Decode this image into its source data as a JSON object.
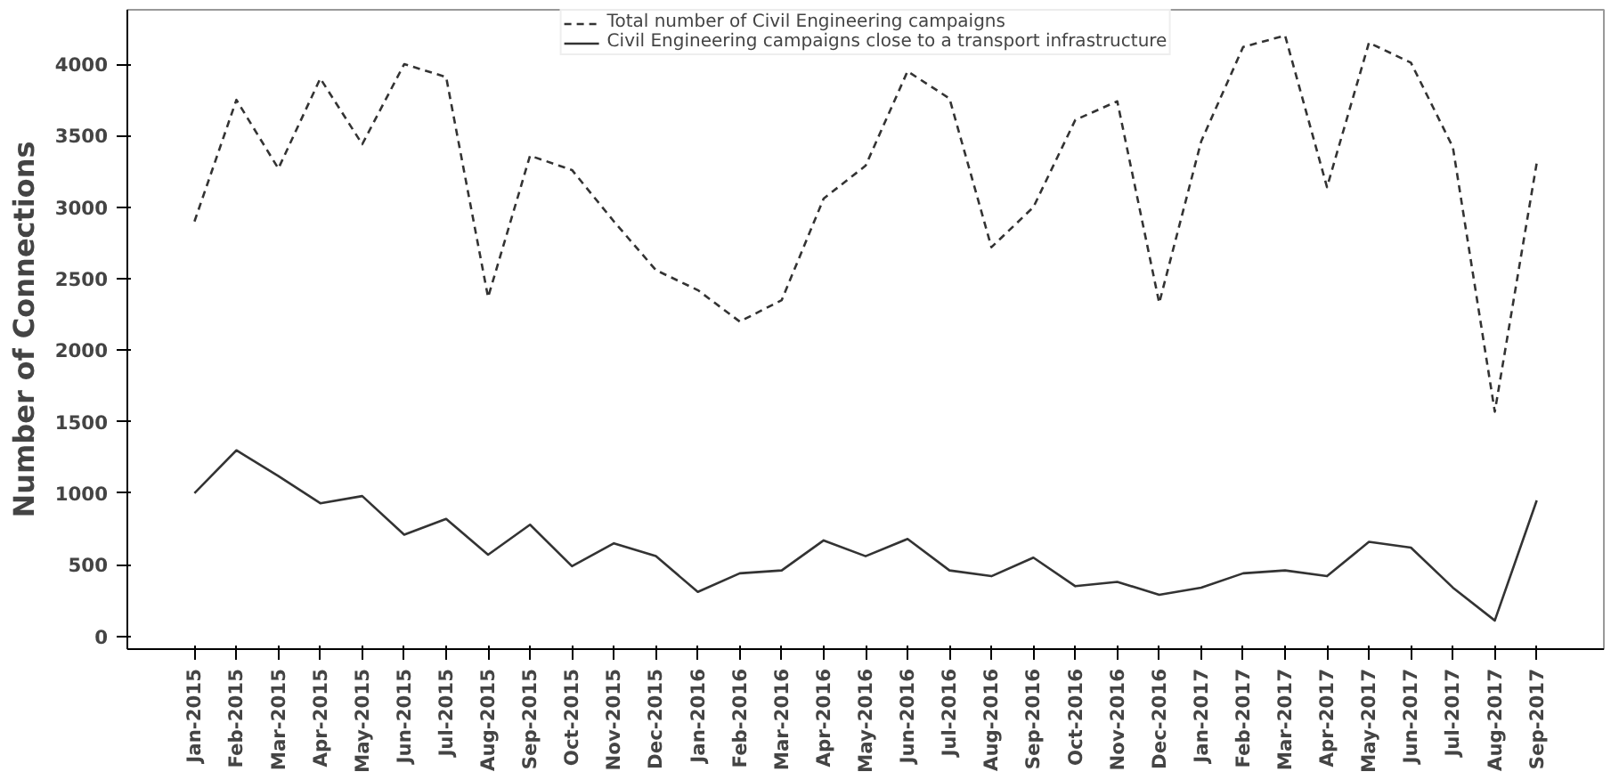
{
  "chart_data": {
    "type": "line",
    "ylabel": "Number of Connections",
    "categories": [
      "Jan-2015",
      "Feb-2015",
      "Mar-2015",
      "Apr-2015",
      "May-2015",
      "Jun-2015",
      "Jul-2015",
      "Aug-2015",
      "Sep-2015",
      "Oct-2015",
      "Nov-2015",
      "Dec-2015",
      "Jan-2016",
      "Feb-2016",
      "Mar-2016",
      "Apr-2016",
      "May-2016",
      "Jun-2016",
      "Jul-2016",
      "Aug-2016",
      "Sep-2016",
      "Oct-2016",
      "Nov-2016",
      "Dec-2016",
      "Jan-2017",
      "Feb-2017",
      "Mar-2017",
      "Apr-2017",
      "May-2017",
      "Jun-2017",
      "Jul-2017",
      "Aug-2017",
      "Sep-2017"
    ],
    "series": [
      {
        "name": "Total number of Civil Engineering campaigns",
        "color": "#333333",
        "line_style": "dashed",
        "values": [
          2900,
          3750,
          3270,
          3900,
          3440,
          4000,
          3910,
          2370,
          3360,
          3260,
          2900,
          2560,
          2420,
          2200,
          2350,
          3060,
          3290,
          3950,
          3760,
          2720,
          3000,
          3610,
          3740,
          2330,
          3460,
          4120,
          4200,
          3140,
          4150,
          4010,
          3420,
          1570,
          3310
        ]
      },
      {
        "name": "Civil Engineering campaigns close to a transport infrastructure",
        "color": "#333333",
        "line_style": "solid",
        "values": [
          1000,
          1300,
          1120,
          930,
          980,
          710,
          820,
          570,
          780,
          490,
          650,
          560,
          310,
          440,
          460,
          670,
          560,
          680,
          460,
          420,
          550,
          350,
          380,
          290,
          340,
          440,
          460,
          420,
          660,
          620,
          340,
          110,
          950
        ]
      }
    ],
    "ylim": [
      -90,
      4380
    ],
    "yticks": [
      0,
      500,
      1000,
      1500,
      2000,
      2500,
      3000,
      3500,
      4000
    ],
    "grid": false,
    "legend": "top",
    "marker": "none"
  }
}
